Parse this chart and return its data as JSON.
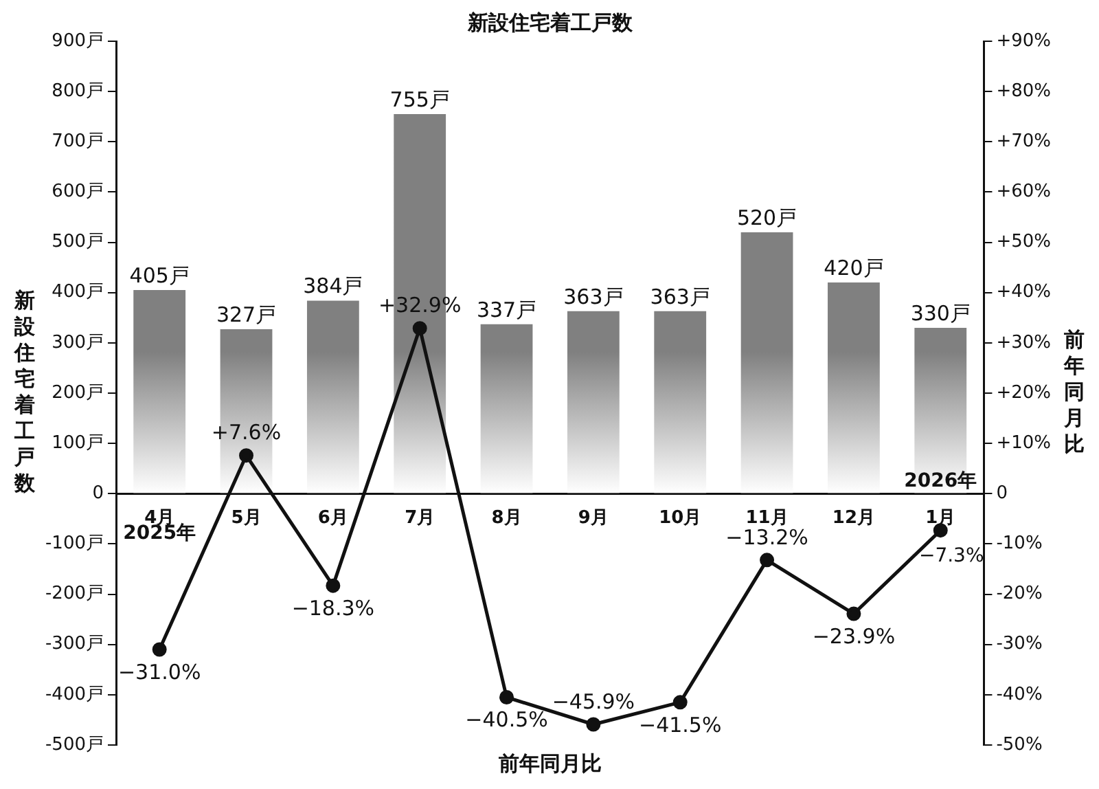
{
  "chart_data": {
    "type": "bar",
    "title": "新設住宅着工戸数",
    "xlabel": "前年同月比",
    "ylabel": "新設住宅着工戸数",
    "y2label": "前年同月比",
    "categories": [
      "4月",
      "5月",
      "6月",
      "7月",
      "8月",
      "9月",
      "10月",
      "11月",
      "12月",
      "1月"
    ],
    "series": [
      {
        "color": "#808080",
        "values": [
          405,
          327,
          384,
          755,
          337,
          363,
          363,
          520,
          420,
          330
        ],
        "value_labels": [
          "405戸",
          "327戸",
          "384戸",
          "755戸",
          "337戸",
          "363戸",
          "363戸",
          "520戸",
          "420戸",
          "330戸"
        ]
      },
      {
        "type": "line",
        "axis": "y2",
        "color": "#111111",
        "marker": "circle",
        "values": [
          -31.0,
          7.6,
          -18.3,
          32.9,
          -40.5,
          -45.9,
          -41.5,
          -13.2,
          -23.9,
          -7.3
        ],
        "value_labels": [
          "−31.0%",
          "+7.6%",
          "−18.3%",
          "+32.9%",
          "−40.5%",
          "−45.9%",
          "−41.5%",
          "−13.2%",
          "−23.9%",
          "−7.3%"
        ]
      }
    ],
    "ylim": [
      -500,
      900
    ],
    "yticks": [
      {
        "value": -500,
        "label": "-500戸"
      },
      {
        "value": -400,
        "label": "-400戸"
      },
      {
        "value": -300,
        "label": "-300戸"
      },
      {
        "value": -200,
        "label": "-200戸"
      },
      {
        "value": -100,
        "label": "-100戸"
      },
      0,
      {
        "value": 100,
        "label": "100戸"
      },
      {
        "value": 200,
        "label": "200戸"
      },
      {
        "value": 300,
        "label": "300戸"
      },
      {
        "value": 400,
        "label": "400戸"
      },
      {
        "value": 500,
        "label": "500戸"
      },
      {
        "value": 600,
        "label": "600戸"
      },
      {
        "value": 700,
        "label": "700戸"
      },
      {
        "value": 800,
        "label": "800戸"
      },
      {
        "value": 900,
        "label": "900戸"
      }
    ],
    "y2lim": [
      -50,
      90
    ],
    "y2ticks": [
      {
        "value": -50,
        "label": "-50%"
      },
      {
        "value": -40,
        "label": "-40%"
      },
      {
        "value": -30,
        "label": "-30%"
      },
      {
        "value": -20,
        "label": "-20%"
      },
      {
        "value": -10,
        "label": "-10%"
      },
      0,
      {
        "value": 10,
        "label": "+10%"
      },
      {
        "value": 20,
        "label": "+20%"
      },
      {
        "value": 30,
        "label": "+30%"
      },
      {
        "value": 40,
        "label": "+40%"
      },
      {
        "value": 50,
        "label": "+50%"
      },
      {
        "value": 60,
        "label": "+60%"
      },
      {
        "value": 70,
        "label": "+70%"
      },
      {
        "value": 80,
        "label": "+80%"
      },
      {
        "value": 90,
        "label": "+90%"
      }
    ],
    "annotations": [
      "2025年",
      "2026年"
    ],
    "legend": false
  }
}
